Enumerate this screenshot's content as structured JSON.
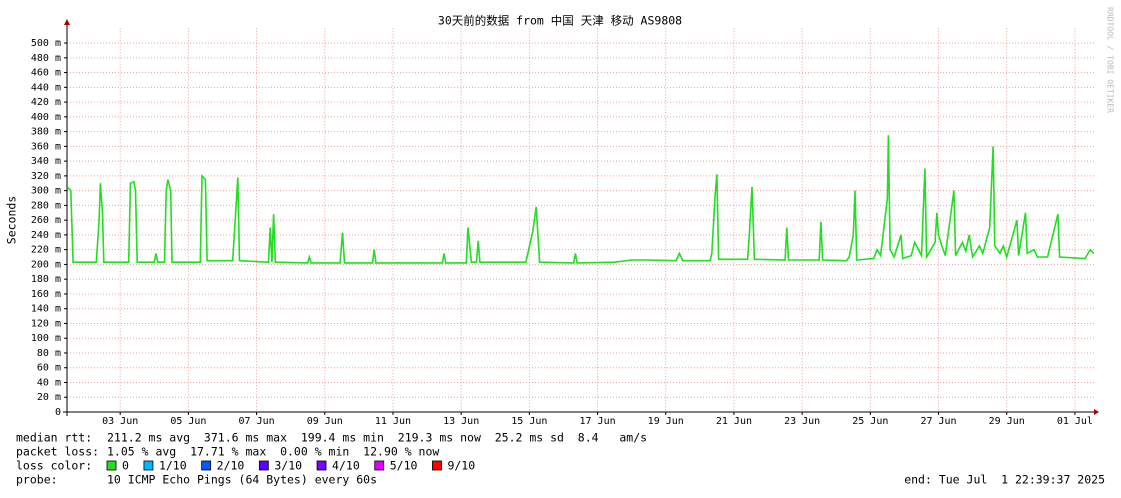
{
  "chart_data": {
    "type": "line",
    "title": "30天前的数据 from 中国 天津 移动 AS9808",
    "y_label": "Seconds",
    "watermark": "RRDTOOL / TOBI OETIKER",
    "grid": true,
    "xlim": [
      1.44,
      31.56
    ],
    "xticks": [
      {
        "value": 3,
        "label": "03 Jun"
      },
      {
        "value": 5,
        "label": "05 Jun"
      },
      {
        "value": 7,
        "label": "07 Jun"
      },
      {
        "value": 9,
        "label": "09 Jun"
      },
      {
        "value": 11,
        "label": "11 Jun"
      },
      {
        "value": 13,
        "label": "13 Jun"
      },
      {
        "value": 15,
        "label": "15 Jun"
      },
      {
        "value": 17,
        "label": "17 Jun"
      },
      {
        "value": 19,
        "label": "19 Jun"
      },
      {
        "value": 21,
        "label": "21 Jun"
      },
      {
        "value": 23,
        "label": "23 Jun"
      },
      {
        "value": 25,
        "label": "25 Jun"
      },
      {
        "value": 27,
        "label": "27 Jun"
      },
      {
        "value": 29,
        "label": "29 Jun"
      },
      {
        "value": 31,
        "label": "01 Jul"
      }
    ],
    "ylim": [
      0,
      520
    ],
    "yticks": [
      0,
      {
        "value": 20,
        "label": "20 m"
      },
      {
        "value": 40,
        "label": "40 m"
      },
      {
        "value": 60,
        "label": "60 m"
      },
      {
        "value": 80,
        "label": "80 m"
      },
      {
        "value": 100,
        "label": "100 m"
      },
      {
        "value": 120,
        "label": "120 m"
      },
      {
        "value": 140,
        "label": "140 m"
      },
      {
        "value": 160,
        "label": "160 m"
      },
      {
        "value": 180,
        "label": "180 m"
      },
      {
        "value": 200,
        "label": "200 m"
      },
      {
        "value": 220,
        "label": "220 m"
      },
      {
        "value": 240,
        "label": "240 m"
      },
      {
        "value": 260,
        "label": "260 m"
      },
      {
        "value": 280,
        "label": "280 m"
      },
      {
        "value": 300,
        "label": "300 m"
      },
      {
        "value": 320,
        "label": "320 m"
      },
      {
        "value": 340,
        "label": "340 m"
      },
      {
        "value": 360,
        "label": "360 m"
      },
      {
        "value": 380,
        "label": "380 m"
      },
      {
        "value": 400,
        "label": "400 m"
      },
      {
        "value": 420,
        "label": "420 m"
      },
      {
        "value": 440,
        "label": "440 m"
      },
      {
        "value": 460,
        "label": "460 m"
      },
      {
        "value": 480,
        "label": "480 m"
      },
      {
        "value": 500,
        "label": "500 m"
      }
    ],
    "x": [
      1.45,
      1.55,
      1.62,
      2.3,
      2.38,
      2.42,
      2.48,
      2.52,
      3.25,
      3.3,
      3.4,
      3.45,
      3.5,
      4.0,
      4.05,
      4.1,
      4.3,
      4.35,
      4.4,
      4.48,
      4.52,
      5.35,
      5.4,
      5.5,
      5.55,
      6.3,
      6.4,
      6.45,
      6.5,
      7.35,
      7.4,
      7.45,
      7.5,
      7.55,
      8.5,
      8.55,
      8.6,
      9.45,
      9.52,
      9.58,
      10.4,
      10.45,
      10.5,
      11.5,
      12.45,
      12.5,
      12.55,
      13.15,
      13.2,
      13.3,
      13.45,
      13.5,
      13.55,
      14.5,
      14.9,
      15.1,
      15.2,
      15.3,
      16.3,
      16.35,
      16.4,
      17.5,
      18.0,
      18.5,
      19.3,
      19.4,
      19.5,
      20.3,
      20.35,
      20.45,
      20.5,
      20.55,
      21.4,
      21.45,
      21.53,
      21.6,
      22.5,
      22.55,
      22.6,
      23.5,
      23.55,
      23.6,
      24.3,
      24.38,
      24.5,
      24.55,
      24.6,
      25.1,
      25.2,
      25.3,
      25.5,
      25.53,
      25.58,
      25.7,
      25.9,
      25.95,
      26.2,
      26.3,
      26.5,
      26.6,
      26.65,
      26.9,
      26.95,
      27.0,
      27.1,
      27.2,
      27.45,
      27.5,
      27.7,
      27.8,
      27.9,
      28.0,
      28.2,
      28.3,
      28.5,
      28.6,
      28.65,
      28.8,
      28.9,
      29.0,
      29.3,
      29.35,
      29.55,
      29.6,
      29.8,
      29.9,
      30.2,
      30.5,
      30.55,
      31.3,
      31.45,
      31.55
    ],
    "series": [
      {
        "name": "median rtt:",
        "color": "#22dd22",
        "values": [
          305,
          300,
          203,
          203,
          260,
          310,
          270,
          203,
          203,
          310,
          312,
          300,
          203,
          203,
          215,
          203,
          203,
          300,
          315,
          300,
          203,
          203,
          320,
          315,
          205,
          205,
          280,
          318,
          205,
          203,
          250,
          203,
          268,
          203,
          202,
          210,
          202,
          202,
          243,
          202,
          202,
          220,
          202,
          202,
          202,
          215,
          202,
          202,
          250,
          203,
          203,
          232,
          203,
          203,
          203,
          245,
          278,
          203,
          202,
          215,
          202,
          203,
          206,
          206,
          205,
          215,
          205,
          205,
          215,
          295,
          322,
          207,
          207,
          240,
          305,
          207,
          206,
          250,
          206,
          206,
          258,
          206,
          205,
          210,
          240,
          300,
          206,
          208,
          220,
          212,
          290,
          375,
          220,
          210,
          240,
          208,
          212,
          230,
          212,
          330,
          210,
          230,
          270,
          240,
          225,
          212,
          300,
          212,
          230,
          218,
          240,
          210,
          225,
          215,
          250,
          360,
          225,
          215,
          225,
          210,
          260,
          212,
          270,
          215,
          220,
          210,
          210,
          268,
          210,
          208,
          220,
          215
        ]
      }
    ],
    "stats": [
      "211.2 ms avg  371.6 ms max  199.4 ms min  219.3 ms now  25.2 ms sd  8.4   am/s",
      "packet loss:",
      "1.05 % avg  17.71 % max  0.00 % min  12.90 % now"
    ],
    "loss_legend": {
      "title": "loss color:",
      "items": [
        {
          "label": "0",
          "color": "#22dd22"
        },
        {
          "label": "1/10",
          "color": "#00b8ff"
        },
        {
          "label": "2/10",
          "color": "#0059ff"
        },
        {
          "label": "3/10",
          "color": "#5e00ff"
        },
        {
          "label": "4/10",
          "color": "#7e00ff"
        },
        {
          "label": "5/10",
          "color": "#dd00ff"
        },
        {
          "label": "9/10",
          "color": "#ff0000"
        }
      ]
    },
    "probe": [
      "probe:",
      "10 ICMP Echo Pings (64 Bytes) every 60s"
    ],
    "end": "end: Tue Jul  1 22:39:37 2025"
  }
}
